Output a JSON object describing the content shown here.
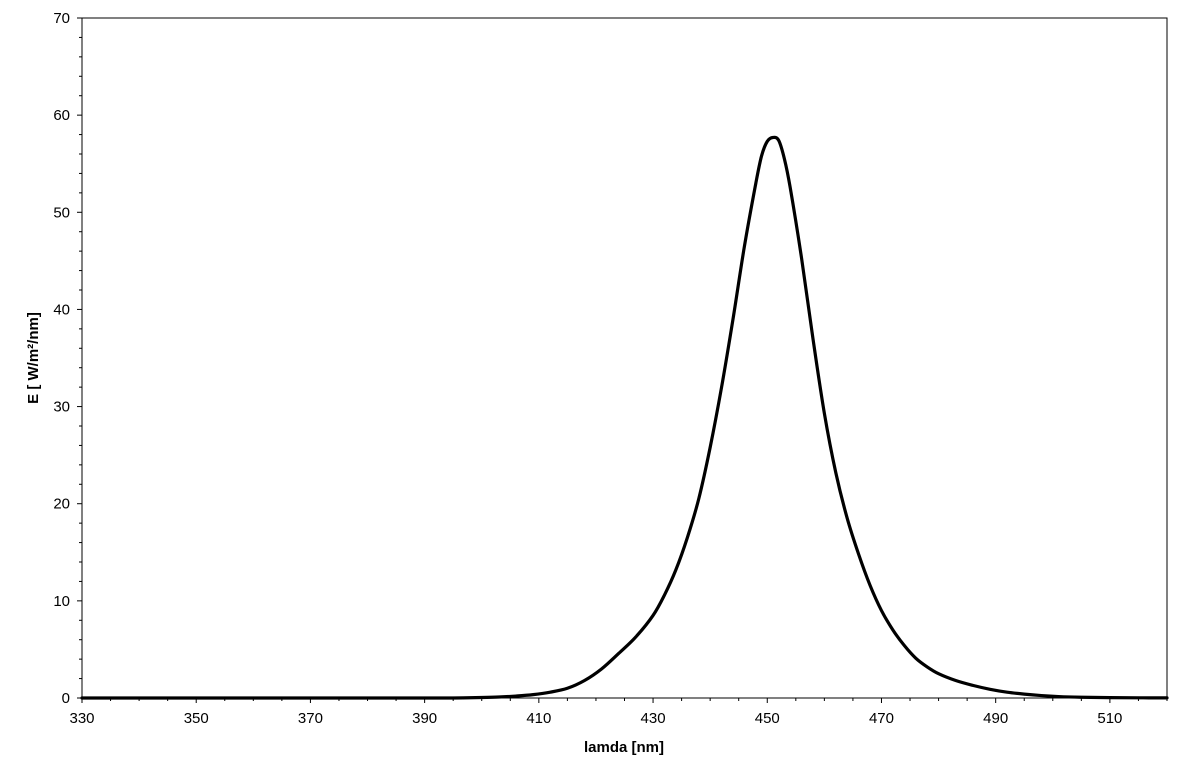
{
  "chart_data": {
    "type": "line",
    "title": "",
    "xlabel": "lamda [nm]",
    "ylabel": "E [ W/m²/nm]",
    "xlim": [
      330,
      520
    ],
    "ylim": [
      0,
      70
    ],
    "x_ticks": [
      330,
      350,
      370,
      390,
      410,
      430,
      450,
      470,
      490,
      510
    ],
    "y_ticks": [
      0,
      10,
      20,
      30,
      40,
      50,
      60,
      70
    ],
    "grid": false,
    "legend": "none",
    "line_color": "#000000",
    "series": [
      {
        "x": [
          330,
          340,
          350,
          360,
          370,
          380,
          390,
          395,
          400,
          403,
          406,
          409,
          412,
          415,
          418,
          421,
          424,
          427,
          430,
          432,
          434,
          436,
          438,
          440,
          442,
          444,
          446,
          448,
          449,
          450,
          451,
          452,
          453,
          454,
          456,
          458,
          460,
          462,
          464,
          466,
          468,
          470,
          472,
          474,
          476,
          478,
          480,
          483,
          486,
          489,
          492,
          495,
          498,
          501,
          505,
          510,
          515,
          520
        ],
        "y": [
          0,
          0,
          0,
          0,
          0,
          0,
          0,
          0,
          0.05,
          0.1,
          0.2,
          0.35,
          0.6,
          1.0,
          1.8,
          3.0,
          4.6,
          6.3,
          8.5,
          10.6,
          13.2,
          16.5,
          20.5,
          25.8,
          32.0,
          39.0,
          46.5,
          53.0,
          55.8,
          57.3,
          57.7,
          57.4,
          55.5,
          52.6,
          45.3,
          37.0,
          29.3,
          23.2,
          18.5,
          14.8,
          11.6,
          9.0,
          7.0,
          5.4,
          4.1,
          3.2,
          2.5,
          1.8,
          1.3,
          0.9,
          0.6,
          0.4,
          0.25,
          0.15,
          0.08,
          0.04,
          0.02,
          0.01
        ]
      }
    ]
  }
}
